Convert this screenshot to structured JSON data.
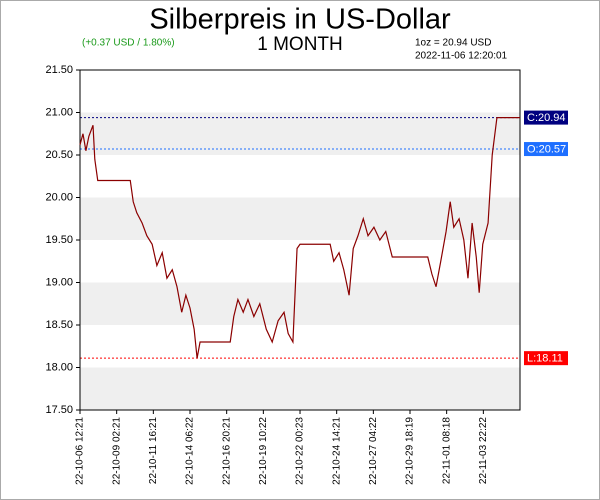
{
  "chart_data": {
    "type": "line",
    "title": "Silberpreis in US-Dollar",
    "subtitle": "1 MONTH",
    "change": "(+0.37 USD / 1.80%)",
    "note": "1oz = 20.94 USD",
    "timestamp": "2022-11-06 12:20:01",
    "x": [
      "22-10-06 12:21",
      "22-10-06 17:21",
      "22-10-06 22:21",
      "22-10-07 03:21",
      "22-10-07 10:21",
      "22-10-07 13:21",
      "22-10-07 18:21",
      "22-10-10 01:21",
      "22-10-10 06:21",
      "22-10-10 12:21",
      "22-10-10 21:21",
      "22-10-11 05:21",
      "22-10-11 14:21",
      "22-10-11 22:21",
      "22-10-12 07:21",
      "22-10-12 15:21",
      "22-10-13 00:21",
      "22-10-13 08:21",
      "22-10-13 16:21",
      "22-10-13 23:21",
      "22-10-14 06:21",
      "22-10-14 13:21",
      "22-10-14 18:21",
      "22-10-14 23:21",
      "22-10-17 02:21",
      "22-10-17 08:21",
      "22-10-17 15:21",
      "22-10-18 00:21",
      "22-10-18 08:21",
      "22-10-18 18:21",
      "22-10-19 04:21",
      "22-10-19 15:21",
      "22-10-20 01:21",
      "22-10-20 11:21",
      "22-10-20 21:21",
      "22-10-21 04:21",
      "22-10-21 12:21",
      "22-10-21 19:21",
      "22-10-22 00:21",
      "22-10-24 03:21",
      "22-10-24 09:21",
      "22-10-24 18:21",
      "22-10-25 02:21",
      "22-10-25 11:21",
      "22-10-25 18:21",
      "22-10-26 02:21",
      "22-10-26 11:21",
      "22-10-26 19:21",
      "22-10-27 05:21",
      "22-10-27 15:21",
      "22-10-28 01:21",
      "22-10-28 12:21",
      "22-10-28 20:21",
      "22-10-31 00:21",
      "22-10-31 07:21",
      "22-10-31 14:21",
      "22-10-31 22:21",
      "22-11-01 07:21",
      "22-11-01 14:21",
      "22-11-01 20:21",
      "22-11-02 05:21",
      "22-11-02 13:21",
      "22-11-02 20:21",
      "22-11-03 03:21",
      "22-11-03 10:21",
      "22-11-03 15:21",
      "22-11-03 21:21",
      "22-11-04 06:21",
      "22-11-04 13:21",
      "22-11-04 21:21",
      "22-11-06 12:20"
    ],
    "series": [
      {
        "color": "#8b0000",
        "values": [
          20.62,
          20.75,
          20.55,
          20.72,
          20.85,
          20.45,
          20.2,
          20.2,
          19.95,
          19.82,
          19.7,
          19.55,
          19.45,
          19.2,
          19.35,
          19.05,
          19.15,
          18.95,
          18.65,
          18.85,
          18.7,
          18.45,
          18.11,
          18.3,
          18.3,
          18.6,
          18.8,
          18.65,
          18.8,
          18.6,
          18.75,
          18.45,
          18.3,
          18.55,
          18.65,
          18.4,
          18.3,
          19.4,
          19.45,
          19.45,
          19.25,
          19.35,
          19.15,
          18.85,
          19.4,
          19.55,
          19.75,
          19.55,
          19.65,
          19.5,
          19.6,
          19.3,
          19.3,
          19.3,
          19.1,
          18.95,
          19.25,
          19.6,
          19.95,
          19.65,
          19.75,
          19.5,
          19.05,
          19.7,
          19.3,
          18.88,
          19.45,
          19.7,
          20.5,
          20.94,
          20.94
        ]
      }
    ],
    "xlim": [
      "22-10-06 12:21",
      "22-11-06 12:20"
    ],
    "xticks": [
      "22-10-06 12:21",
      "22-10-09 02:21",
      "22-10-11 16:21",
      "22-10-14 06:22",
      "22-10-16 20:21",
      "22-10-19 10:22",
      "22-10-22 00:23",
      "22-10-24 14:21",
      "22-10-27 04:22",
      "22-10-29 18:19",
      "22-11-01 08:18",
      "22-11-03 22:22"
    ],
    "ylim": [
      17.5,
      21.5
    ],
    "yticks": [
      {
        "value": 17.5,
        "label": "17.50"
      },
      {
        "value": 18,
        "label": "18.00"
      },
      {
        "value": 18.5,
        "label": "18.50"
      },
      {
        "value": 19,
        "label": "19.00"
      },
      {
        "value": 19.5,
        "label": "19.50"
      },
      {
        "value": 20,
        "label": "20.00"
      },
      {
        "value": 20.5,
        "label": "20.50"
      },
      {
        "value": 21,
        "label": "21.00"
      },
      {
        "value": 21.5,
        "label": "21.50"
      }
    ],
    "bands": true,
    "reference_lines": [
      {
        "value": 20.94,
        "label": "C:20.94",
        "color": "#000080"
      },
      {
        "value": 20.57,
        "label": "O:20.57",
        "color": "#1e6fff"
      },
      {
        "value": 18.11,
        "label": "L:18.11",
        "color": "#ff0000"
      }
    ]
  }
}
